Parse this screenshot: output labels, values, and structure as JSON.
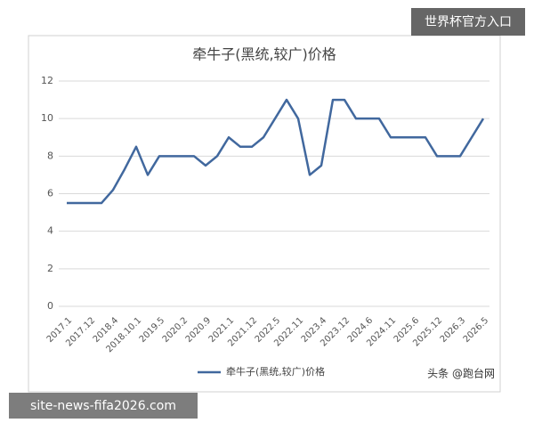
{
  "chart_data": {
    "type": "line",
    "title": "牵牛子(黑统,较广)价格",
    "categories": [
      "2017.1",
      null,
      "2017.12",
      null,
      "2018.4",
      null,
      "2018.10.1",
      null,
      "2019.5",
      null,
      "2020.2",
      null,
      "2020.9",
      null,
      "2021.1",
      null,
      "2021.12",
      null,
      "2022.5",
      null,
      "2022.11",
      null,
      "2023.4",
      null,
      "2023.12",
      null,
      "2024.6",
      null,
      "2024.11",
      null,
      "2025.6",
      null,
      "2025.12",
      null,
      "2026.3",
      null,
      "2026.5"
    ],
    "series": [
      {
        "name": "牵牛子(黑统,较广)价格",
        "color": "#41689e",
        "values": [
          5.5,
          5.5,
          5.5,
          5.5,
          6.2,
          7.3,
          8.5,
          7,
          8,
          8,
          8,
          8,
          7.5,
          8,
          9,
          8.5,
          8.5,
          9,
          10,
          11,
          10,
          7,
          7.5,
          11,
          11,
          10,
          10,
          10,
          9,
          9,
          9,
          9,
          8,
          8,
          8,
          9,
          10
        ]
      }
    ],
    "ylim": [
      0,
      12
    ],
    "yticks": [
      0,
      2,
      4,
      6,
      8,
      10,
      12
    ],
    "grid": true,
    "legend": "bottom",
    "annotation": "头条 @跑台网"
  },
  "badge": "世界杯官方入口",
  "site": "site-news-fifa2026.com"
}
